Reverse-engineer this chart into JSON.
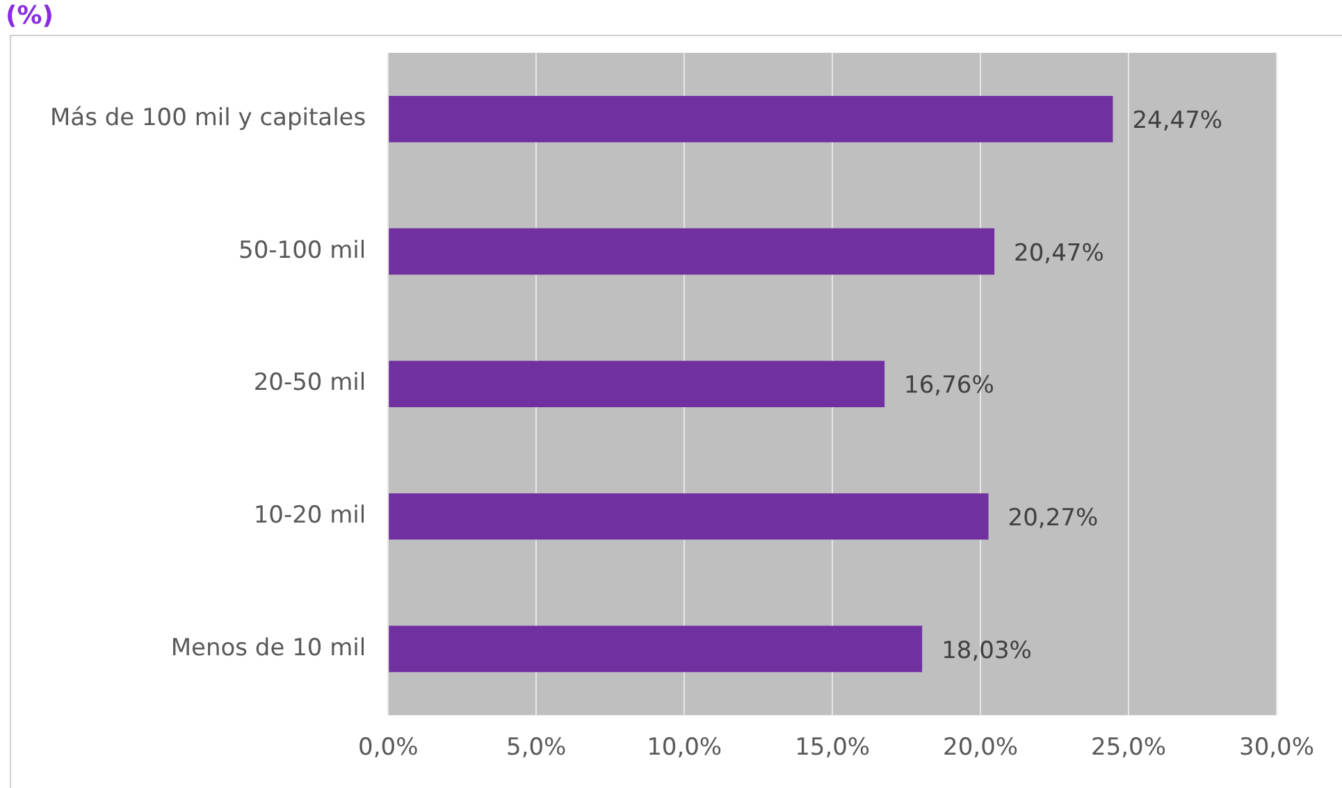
{
  "chart_data": {
    "type": "bar",
    "orientation": "horizontal",
    "title": "(%)",
    "categories": [
      "Más de 100 mil y capitales",
      "50-100 mil",
      "20-50 mil",
      "10-20 mil",
      "Menos de 10 mil"
    ],
    "values": [
      24.47,
      20.47,
      16.76,
      20.27,
      18.03
    ],
    "value_labels": [
      "24,47%",
      "20,47%",
      "16,76%",
      "20,27%",
      "18,03%"
    ],
    "color": "#7030a0",
    "xlim": [
      0,
      30
    ],
    "xticks": [
      {
        "value": 0,
        "label": "0,0%"
      },
      {
        "value": 5,
        "label": "5,0%"
      },
      {
        "value": 10,
        "label": "10,0%"
      },
      {
        "value": 15,
        "label": "15,0%"
      },
      {
        "value": 20,
        "label": "20,0%"
      },
      {
        "value": 25,
        "label": "25,0%"
      },
      {
        "value": 30,
        "label": "30,0%"
      }
    ],
    "grid": "x",
    "legend": false
  }
}
